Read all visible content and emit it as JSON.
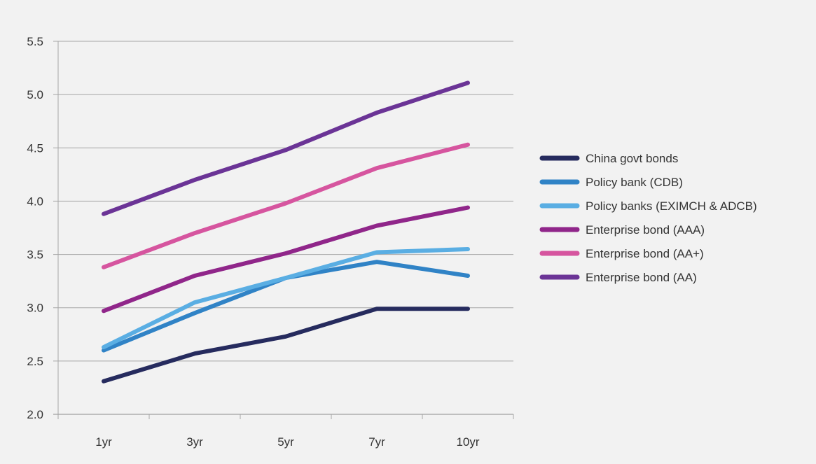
{
  "chart_data": {
    "type": "line",
    "title": "",
    "xlabel": "",
    "ylabel": "",
    "categories": [
      "1yr",
      "3yr",
      "5yr",
      "7yr",
      "10yr"
    ],
    "ylim": [
      2.0,
      5.5
    ],
    "yticks": [
      "2.0",
      "2.5",
      "3.0",
      "3.5",
      "4.0",
      "4.5",
      "5.0",
      "5.5"
    ],
    "grid": true,
    "legend_position": "right",
    "series": [
      {
        "name": "China govt bonds",
        "color": "#262b5e",
        "values": [
          2.31,
          2.57,
          2.73,
          2.99,
          2.99
        ]
      },
      {
        "name": "Policy bank (CDB)",
        "color": "#3083c6",
        "values": [
          2.6,
          2.95,
          3.28,
          3.43,
          3.3
        ]
      },
      {
        "name": "Policy banks (EXIMCH & ADCB)",
        "color": "#5aaee3",
        "values": [
          2.63,
          3.05,
          3.28,
          3.52,
          3.55
        ]
      },
      {
        "name": "Enterprise bond (AAA)",
        "color": "#90268a",
        "values": [
          2.97,
          3.3,
          3.51,
          3.77,
          3.94
        ]
      },
      {
        "name": "Enterprise bond (AA+)",
        "color": "#d6559f",
        "values": [
          3.38,
          3.7,
          3.98,
          4.31,
          4.53
        ]
      },
      {
        "name": "Enterprise bond (AA)",
        "color": "#6b3496",
        "values": [
          3.88,
          4.2,
          4.48,
          4.83,
          5.11
        ]
      }
    ]
  }
}
